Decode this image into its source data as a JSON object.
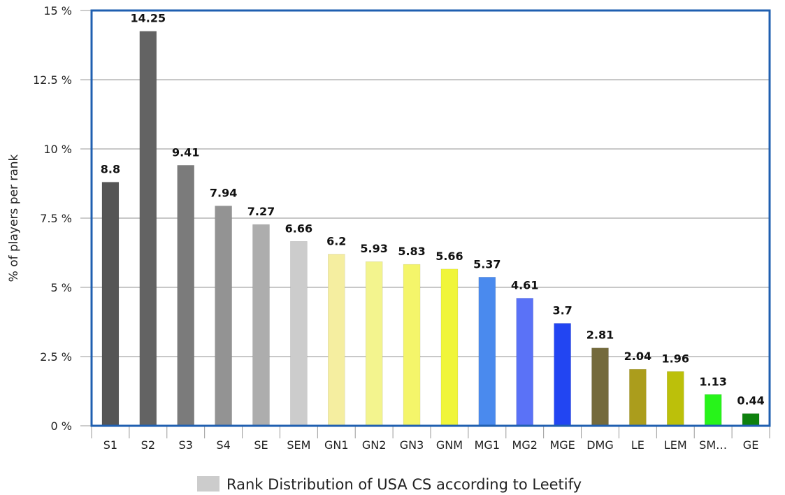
{
  "chart_data": {
    "type": "bar",
    "ylabel": "% of players per rank",
    "ylim": [
      0,
      15
    ],
    "yticks": [
      "0 %",
      "2.5 %",
      "5 %",
      "7.5 %",
      "10 %",
      "12.5 %",
      "15 %"
    ],
    "grid": true,
    "legend_position": "bottom-center",
    "categories": [
      "S1",
      "S2",
      "S3",
      "S4",
      "SE",
      "SEM",
      "GN1",
      "GN2",
      "GN3",
      "GNM",
      "MG1",
      "MG2",
      "MGE",
      "DMG",
      "LE",
      "LEM",
      "SM…",
      "GE"
    ],
    "series": [
      {
        "name": "Rank Distribution of USA CS according to Leetify",
        "values": [
          8.8,
          14.25,
          9.41,
          7.94,
          7.27,
          6.66,
          6.2,
          5.93,
          5.83,
          5.66,
          5.37,
          4.61,
          3.7,
          2.81,
          2.04,
          1.96,
          1.13,
          0.44
        ],
        "value_labels": [
          "8.8",
          "14.25",
          "9.41",
          "7.94",
          "7.27",
          "6.66",
          "6.2",
          "5.93",
          "5.83",
          "5.66",
          "5.37",
          "4.61",
          "3.7",
          "2.81",
          "2.04",
          "1.96",
          "1.13",
          "0.44"
        ],
        "colors": [
          "#555555",
          "#636363",
          "#7b7b7b",
          "#939393",
          "#adadad",
          "#cccccc",
          "#f5eea0",
          "#f3f48e",
          "#f4f56a",
          "#f0f53a",
          "#4a8aee",
          "#5a72f7",
          "#2245f2",
          "#746a3c",
          "#ab9d1c",
          "#bcc00a",
          "#27f41a",
          "#0e810e"
        ]
      }
    ],
    "colors": {
      "frame": "#1f5fb0",
      "grid": "#b5b5b5",
      "axis": "#999999",
      "legend_swatch": "#cccccc"
    }
  }
}
